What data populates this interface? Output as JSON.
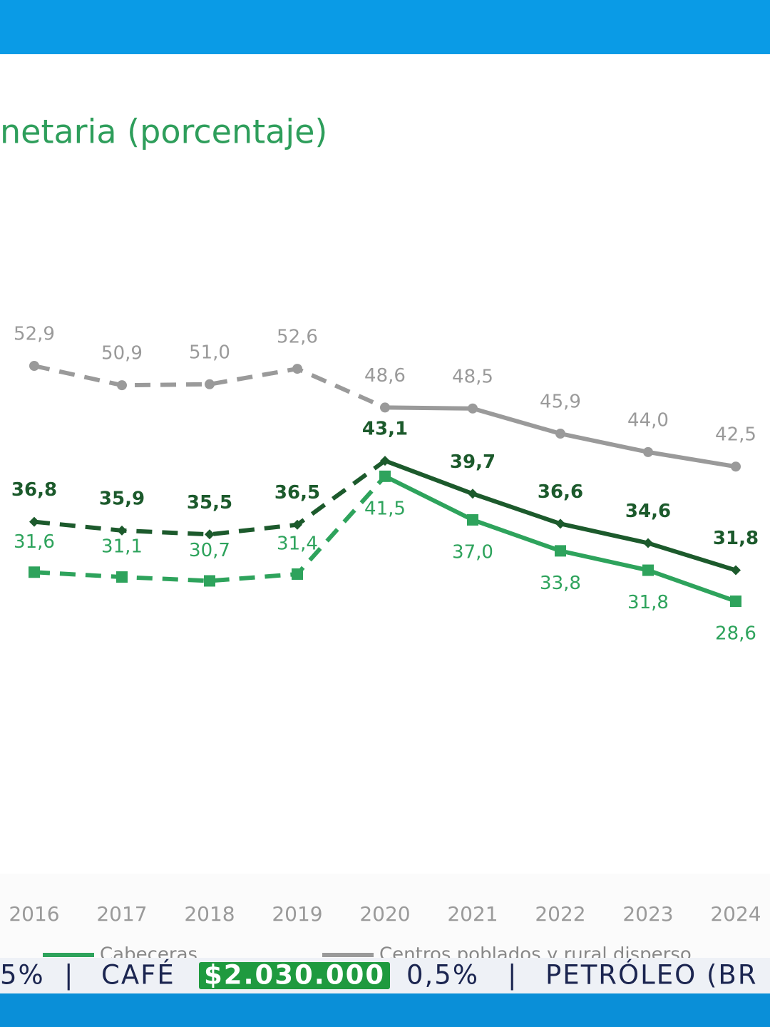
{
  "chart_data": {
    "type": "line",
    "title": "netaria (porcentaje)",
    "categories": [
      "2016",
      "2017",
      "2018",
      "2019",
      "2020",
      "2021",
      "2022",
      "2023",
      "2024"
    ],
    "dashed_before": "2020",
    "series": [
      {
        "name": "Centros poblados y rural disperso",
        "color": "#9a9a9a",
        "marker": "circle",
        "values": [
          52.9,
          50.9,
          51.0,
          52.6,
          48.6,
          48.5,
          45.9,
          44.0,
          42.5
        ],
        "value_labels": [
          "52,9",
          "50,9",
          "51,0",
          "52,6",
          "48,6",
          "48,5",
          "45,9",
          "44,0",
          "42,5"
        ]
      },
      {
        "color": "#1c5a2c",
        "marker": "diamond",
        "values": [
          36.8,
          35.9,
          35.5,
          36.5,
          43.1,
          39.7,
          36.6,
          34.6,
          31.8
        ],
        "value_labels": [
          "36,8",
          "35,9",
          "35,5",
          "36,5",
          "43,1",
          "39,7",
          "36,6",
          "34,6",
          "31,8"
        ]
      },
      {
        "name": "Cabeceras",
        "color": "#2ea35c",
        "marker": "square",
        "values": [
          31.6,
          31.1,
          30.7,
          31.4,
          41.5,
          37.0,
          33.8,
          31.8,
          28.6
        ],
        "value_labels": [
          "31,6",
          "31,1",
          "30,7",
          "31,4",
          "41,5",
          "37,0",
          "33,8",
          "31,8",
          "28,6"
        ]
      }
    ]
  },
  "ticker": {
    "items": [
      "5%",
      "CAFÉ",
      "$2.030.000",
      "0,5%",
      "PETRÓLEO (BR"
    ]
  }
}
